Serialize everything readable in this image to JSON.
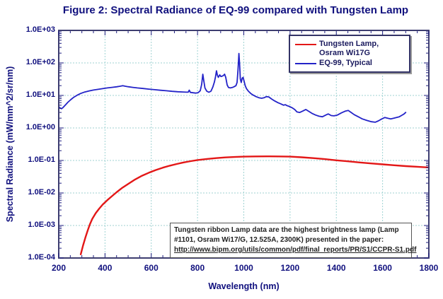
{
  "title": "Figure 2: Spectral Radiance of EQ-99 compared with Tungsten Lamp",
  "colors": {
    "title_text": "#10107e",
    "axis_text": "#10107e",
    "plot_border": "#3d3d70",
    "gridline": "#9fd2d2",
    "tungsten_red": "#e31717",
    "eq99_blue": "#2323c8",
    "legend_border": "#333366",
    "annotation_text": "#222222",
    "background": "#ffffff"
  },
  "legend": {
    "items": [
      {
        "label": "Tungsten Lamp, Osram Wi17G",
        "color": "#e31717"
      },
      {
        "label": "EQ-99, Typical",
        "color": "#2323c8"
      }
    ]
  },
  "annotation": {
    "lines": [
      "Tungsten ribbon Lamp data are the highest brightness lamp (Lamp",
      "#1101, Osram Wi17/G, 12.525A, 2300K) presented in the paper:",
      "http://www.bipm.org/utils/common/pdf/final_reports/PR/S1/CCPR-S1.pdf"
    ]
  },
  "chart_data": {
    "type": "line",
    "title": "Figure 2: Spectral Radiance of EQ-99 compared with Tungsten Lamp",
    "xlabel": "Wavelength (nm)",
    "ylabel": "Spectral Radiance (mW/mm^2/sr/nm)",
    "x_scale": "linear",
    "y_scale": "log",
    "xlim": [
      200,
      1800
    ],
    "ylim": [
      0.0001,
      1000
    ],
    "grid": true,
    "legend_position": "top-right",
    "x_ticks": [
      200,
      400,
      600,
      800,
      1000,
      1200,
      1400,
      1600,
      1800
    ],
    "x_minor_tick_step": 50,
    "y_tick_values": [
      1000,
      100,
      10,
      1,
      0.1,
      0.01,
      0.001,
      0.0001
    ],
    "y_tick_labels": [
      "1.0E+03",
      "1.0E+02",
      "1.0E+01",
      "1.0E+00",
      "1.0E-01",
      "1.0E-02",
      "1.0E-03",
      "1.0E-04"
    ],
    "series": [
      {
        "name": "Tungsten Lamp, Osram Wi17G",
        "color": "#e31717",
        "width": 2.4,
        "points": [
          [
            295,
            0.00013
          ],
          [
            305,
            0.00024
          ],
          [
            315,
            0.00042
          ],
          [
            325,
            0.0007
          ],
          [
            335,
            0.0011
          ],
          [
            345,
            0.0016
          ],
          [
            360,
            0.0024
          ],
          [
            375,
            0.0033
          ],
          [
            390,
            0.0044
          ],
          [
            410,
            0.006
          ],
          [
            430,
            0.008
          ],
          [
            450,
            0.0105
          ],
          [
            475,
            0.0145
          ],
          [
            500,
            0.019
          ],
          [
            530,
            0.026
          ],
          [
            560,
            0.034
          ],
          [
            590,
            0.042
          ],
          [
            620,
            0.051
          ],
          [
            650,
            0.06
          ],
          [
            680,
            0.069
          ],
          [
            710,
            0.078
          ],
          [
            740,
            0.087
          ],
          [
            770,
            0.095
          ],
          [
            800,
            0.103
          ],
          [
            840,
            0.111
          ],
          [
            880,
            0.118
          ],
          [
            920,
            0.124
          ],
          [
            960,
            0.128
          ],
          [
            1000,
            0.131
          ],
          [
            1050,
            0.133
          ],
          [
            1100,
            0.134
          ],
          [
            1150,
            0.133
          ],
          [
            1200,
            0.131
          ],
          [
            1250,
            0.125
          ],
          [
            1300,
            0.118
          ],
          [
            1350,
            0.11
          ],
          [
            1400,
            0.101
          ],
          [
            1450,
            0.094
          ],
          [
            1500,
            0.087
          ],
          [
            1550,
            0.081
          ],
          [
            1600,
            0.076
          ],
          [
            1650,
            0.071
          ],
          [
            1700,
            0.067
          ],
          [
            1750,
            0.064
          ],
          [
            1800,
            0.061
          ]
        ]
      },
      {
        "name": "EQ-99, Typical",
        "color": "#2323c8",
        "width": 1.8,
        "points": [
          [
            200,
            4.5
          ],
          [
            206,
            4.1
          ],
          [
            212,
            3.9
          ],
          [
            218,
            4.2
          ],
          [
            228,
            5.0
          ],
          [
            240,
            6.2
          ],
          [
            252,
            7.4
          ],
          [
            265,
            8.8
          ],
          [
            280,
            10.2
          ],
          [
            295,
            11.5
          ],
          [
            312,
            12.7
          ],
          [
            330,
            13.7
          ],
          [
            350,
            14.6
          ],
          [
            370,
            15.4
          ],
          [
            390,
            16.2
          ],
          [
            410,
            17.0
          ],
          [
            430,
            17.7
          ],
          [
            450,
            18.4
          ],
          [
            465,
            19.2
          ],
          [
            477,
            20.0
          ],
          [
            488,
            19.2
          ],
          [
            500,
            18.5
          ],
          [
            520,
            17.7
          ],
          [
            540,
            17.0
          ],
          [
            565,
            16.3
          ],
          [
            590,
            15.6
          ],
          [
            615,
            15.0
          ],
          [
            640,
            14.4
          ],
          [
            665,
            13.9
          ],
          [
            690,
            13.4
          ],
          [
            715,
            13.0
          ],
          [
            735,
            12.8
          ],
          [
            752,
            12.6
          ],
          [
            760,
            12.6
          ],
          [
            764,
            14.5
          ],
          [
            769,
            12.4
          ],
          [
            780,
            12.1
          ],
          [
            792,
            11.8
          ],
          [
            803,
            12.2
          ],
          [
            812,
            14.0
          ],
          [
            818,
            22
          ],
          [
            823,
            45
          ],
          [
            827,
            28
          ],
          [
            832,
            17
          ],
          [
            840,
            13.5
          ],
          [
            849,
            12.5
          ],
          [
            858,
            13.5
          ],
          [
            866,
            18
          ],
          [
            873,
            26
          ],
          [
            878,
            38
          ],
          [
            882,
            57
          ],
          [
            886,
            42
          ],
          [
            890,
            36
          ],
          [
            896,
            43
          ],
          [
            901,
            38
          ],
          [
            906,
            39
          ],
          [
            912,
            41
          ],
          [
            917,
            45
          ],
          [
            922,
            36
          ],
          [
            928,
            21
          ],
          [
            934,
            17.5
          ],
          [
            942,
            17
          ],
          [
            950,
            17.5
          ],
          [
            958,
            18.5
          ],
          [
            966,
            20
          ],
          [
            971,
            25
          ],
          [
            975,
            60
          ],
          [
            979,
            195
          ],
          [
            982,
            90
          ],
          [
            985,
            32
          ],
          [
            989,
            25
          ],
          [
            993,
            34
          ],
          [
            997,
            36
          ],
          [
            1001,
            28
          ],
          [
            1006,
            20
          ],
          [
            1012,
            16
          ],
          [
            1020,
            13.5
          ],
          [
            1030,
            11.5
          ],
          [
            1041,
            10.2
          ],
          [
            1053,
            9.2
          ],
          [
            1065,
            8.5
          ],
          [
            1077,
            8.2
          ],
          [
            1088,
            8.5
          ],
          [
            1098,
            9.2
          ],
          [
            1108,
            9.0
          ],
          [
            1120,
            7.8
          ],
          [
            1133,
            6.8
          ],
          [
            1147,
            6.0
          ],
          [
            1160,
            5.5
          ],
          [
            1172,
            5.0
          ],
          [
            1180,
            5.2
          ],
          [
            1186,
            4.9
          ],
          [
            1196,
            4.6
          ],
          [
            1208,
            4.2
          ],
          [
            1220,
            3.7
          ],
          [
            1230,
            3.1
          ],
          [
            1242,
            3.0
          ],
          [
            1255,
            3.3
          ],
          [
            1268,
            3.7
          ],
          [
            1282,
            3.2
          ],
          [
            1295,
            2.8
          ],
          [
            1310,
            2.5
          ],
          [
            1325,
            2.3
          ],
          [
            1340,
            2.2
          ],
          [
            1355,
            2.5
          ],
          [
            1365,
            2.7
          ],
          [
            1378,
            2.4
          ],
          [
            1390,
            2.35
          ],
          [
            1405,
            2.5
          ],
          [
            1422,
            2.9
          ],
          [
            1440,
            3.3
          ],
          [
            1452,
            3.45
          ],
          [
            1464,
            3.0
          ],
          [
            1478,
            2.55
          ],
          [
            1495,
            2.2
          ],
          [
            1512,
            1.9
          ],
          [
            1532,
            1.7
          ],
          [
            1552,
            1.55
          ],
          [
            1568,
            1.5
          ],
          [
            1582,
            1.65
          ],
          [
            1597,
            1.9
          ],
          [
            1610,
            2.1
          ],
          [
            1622,
            2.0
          ],
          [
            1635,
            1.9
          ],
          [
            1648,
            2.0
          ],
          [
            1660,
            2.1
          ],
          [
            1672,
            2.2
          ],
          [
            1683,
            2.45
          ],
          [
            1693,
            2.7
          ],
          [
            1700,
            3.0
          ]
        ]
      }
    ]
  }
}
